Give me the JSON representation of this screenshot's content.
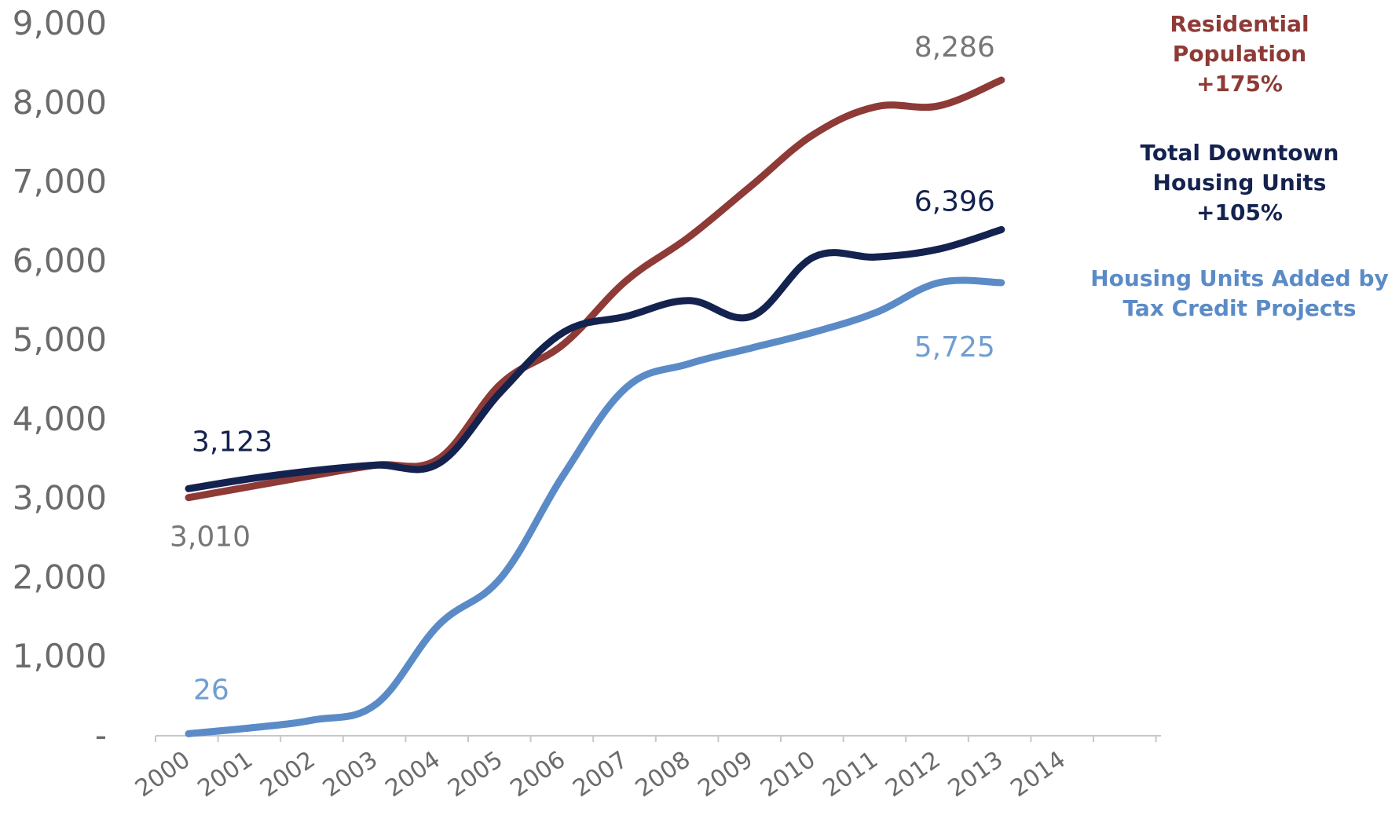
{
  "chart_data": {
    "type": "line",
    "x": [
      "2000",
      "2001",
      "2002",
      "2003",
      "2004",
      "2005",
      "2006",
      "2007",
      "2008",
      "2009",
      "2010",
      "2011",
      "2012",
      "2013",
      "2014"
    ],
    "ylim": [
      0,
      9000
    ],
    "yticks": [
      {
        "value": 0,
        "label": "-"
      },
      {
        "value": 1000,
        "label": "1,000"
      },
      {
        "value": 2000,
        "label": "2,000"
      },
      {
        "value": 3000,
        "label": "3,000"
      },
      {
        "value": 4000,
        "label": "4,000"
      },
      {
        "value": 5000,
        "label": "5,000"
      },
      {
        "value": 6000,
        "label": "6,000"
      },
      {
        "value": 7000,
        "label": "7,000"
      },
      {
        "value": 8000,
        "label": "8,000"
      },
      {
        "value": 9000,
        "label": "9,000"
      }
    ],
    "grid": false,
    "legend_placement": "right",
    "series": [
      {
        "key": "residential",
        "legend_lines": [
          "Residential",
          "Population",
          "+175%"
        ],
        "color": "#8e3a36",
        "values": [
          3010,
          3150,
          3290,
          3420,
          3500,
          4450,
          4950,
          5750,
          6300,
          6950,
          7600,
          7950,
          7960,
          8286,
          8286
        ],
        "labels": [
          {
            "index": 0,
            "text": "3,010",
            "color": "#777777"
          },
          {
            "index": 14,
            "text": "8,286",
            "color": "#777777"
          }
        ]
      },
      {
        "key": "total_units",
        "legend_lines": [
          "Total Downtown",
          "Housing Units",
          "+105%"
        ],
        "color": "#14224f",
        "values": [
          3123,
          3250,
          3350,
          3420,
          3440,
          4350,
          5100,
          5300,
          5500,
          5300,
          6050,
          6050,
          6150,
          6396,
          6396
        ],
        "labels": [
          {
            "index": 0,
            "text": "3,123",
            "color": "#14224f"
          },
          {
            "index": 14,
            "text": "6,396",
            "color": "#14224f"
          }
        ]
      },
      {
        "key": "tax_credit",
        "legend_lines": [
          "Housing Units Added by",
          "Tax Credit Projects"
        ],
        "color": "#5b8bc7",
        "values": [
          26,
          100,
          200,
          400,
          1400,
          2000,
          3300,
          4400,
          4700,
          4900,
          5100,
          5350,
          5725,
          5725,
          5725
        ],
        "labels": [
          {
            "index": 0,
            "text": "26",
            "color": "#6f9ed1"
          },
          {
            "index": 14,
            "text": "5,725",
            "color": "#6f9ed1"
          }
        ]
      }
    ]
  }
}
